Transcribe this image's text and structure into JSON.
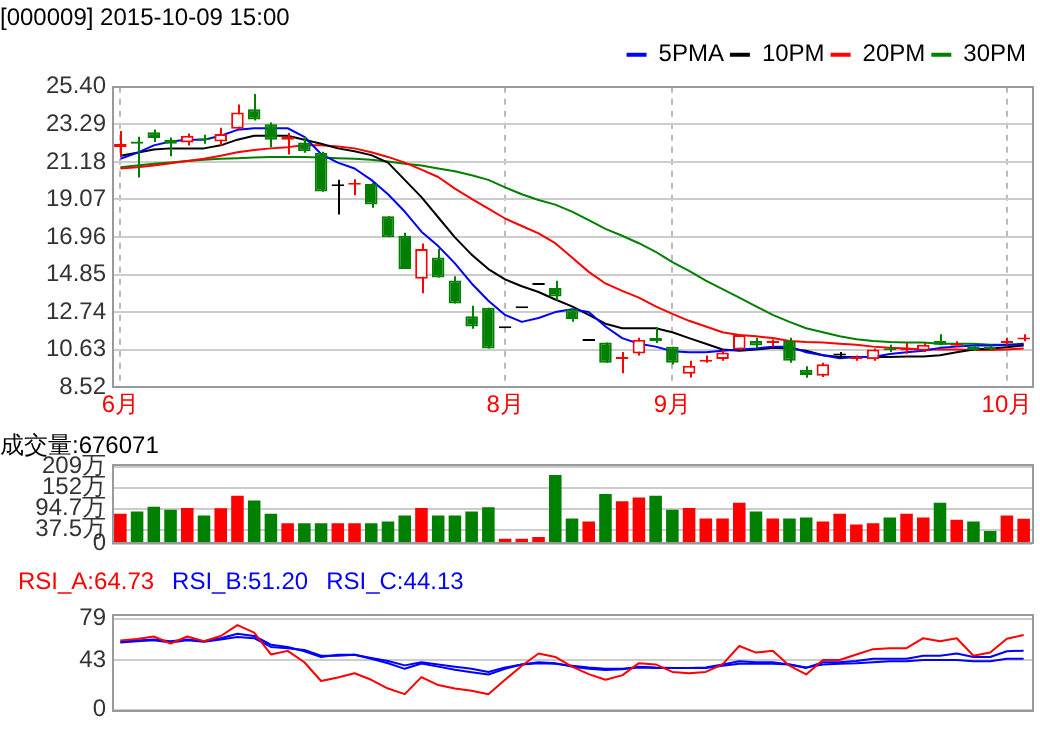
{
  "chart_data": [
    {
      "type": "candlestick",
      "title": "[000009] 2015-10-09 15:00",
      "categories": [
        "6月",
        null,
        null,
        null,
        null,
        null,
        null,
        null,
        null,
        null,
        null,
        null,
        null,
        null,
        null,
        null,
        null,
        null,
        null,
        null,
        null,
        null,
        null,
        "8月",
        null,
        null,
        null,
        null,
        null,
        null,
        null,
        null,
        null,
        "9月",
        null,
        null,
        null,
        null,
        null,
        null,
        null,
        null,
        null,
        null,
        null,
        null,
        null,
        null,
        null,
        null,
        null,
        null,
        null,
        "10月",
        null
      ],
      "ohlc": [
        [
          22.01,
          22.91,
          21.46,
          22.2
        ],
        [
          22.33,
          22.6,
          20.3,
          22.2
        ],
        [
          22.85,
          23.0,
          22.3,
          22.53
        ],
        [
          22.43,
          22.55,
          21.5,
          22.2
        ],
        [
          22.27,
          22.78,
          22.1,
          22.65
        ],
        [
          22.5,
          22.7,
          22.2,
          22.4
        ],
        [
          22.33,
          23.1,
          22.1,
          22.75
        ],
        [
          23.04,
          24.4,
          23.0,
          23.95
        ],
        [
          24.14,
          25.0,
          23.5,
          23.56
        ],
        [
          23.3,
          23.4,
          22.0,
          22.43
        ],
        [
          22.43,
          22.8,
          21.6,
          22.6
        ],
        [
          22.27,
          22.6,
          21.7,
          21.78
        ],
        [
          21.69,
          21.75,
          19.5,
          19.52
        ],
        [
          19.81,
          20.17,
          18.23,
          19.81
        ],
        [
          19.9,
          20.2,
          19.3,
          20.0
        ],
        [
          19.94,
          20.0,
          18.6,
          18.78
        ],
        [
          18.13,
          18.13,
          16.94,
          16.94
        ],
        [
          17.03,
          17.2,
          15.16,
          15.16
        ],
        [
          14.61,
          16.6,
          13.8,
          16.29
        ],
        [
          15.81,
          16.3,
          14.68,
          14.68
        ],
        [
          14.51,
          14.75,
          13.22,
          13.22
        ],
        [
          12.51,
          13.1,
          11.8,
          11.93
        ],
        [
          12.99,
          12.99,
          10.7,
          10.7
        ],
        [
          11.83,
          11.83,
          11.83,
          11.83
        ],
        [
          12.96,
          12.96,
          12.96,
          12.96
        ],
        [
          14.26,
          14.26,
          14.26,
          14.26
        ],
        [
          14.1,
          14.5,
          13.4,
          13.61
        ],
        [
          12.9,
          12.9,
          12.2,
          12.35
        ],
        [
          11.12,
          11.12,
          11.12,
          11.12
        ],
        [
          11.03,
          11.03,
          9.9,
          9.9
        ],
        [
          10.1,
          10.5,
          9.3,
          10.15
        ],
        [
          10.41,
          11.3,
          10.3,
          11.19
        ],
        [
          11.3,
          11.9,
          11.0,
          11.12
        ],
        [
          10.8,
          10.8,
          9.8,
          9.9
        ],
        [
          9.27,
          10.0,
          9.07,
          9.72
        ],
        [
          9.95,
          10.3,
          9.9,
          10.0
        ],
        [
          10.1,
          10.6,
          10.0,
          10.47
        ],
        [
          10.64,
          11.5,
          10.6,
          11.45
        ],
        [
          11.12,
          11.3,
          10.7,
          10.86
        ],
        [
          11.0,
          11.2,
          10.8,
          11.03
        ],
        [
          11.12,
          11.3,
          9.9,
          10.0
        ],
        [
          9.5,
          9.7,
          9.05,
          9.2
        ],
        [
          9.17,
          9.9,
          9.1,
          9.81
        ],
        [
          10.3,
          10.5,
          10.1,
          10.3
        ],
        [
          10.1,
          10.3,
          10.0,
          10.15
        ],
        [
          10.09,
          10.7,
          10.0,
          10.64
        ],
        [
          10.7,
          10.9,
          10.5,
          10.6
        ],
        [
          10.6,
          11.0,
          10.4,
          10.64
        ],
        [
          10.57,
          11.0,
          10.5,
          10.9
        ],
        [
          11.12,
          11.5,
          10.9,
          10.9
        ],
        [
          10.85,
          11.1,
          10.8,
          10.9
        ],
        [
          10.8,
          10.85,
          10.55,
          10.6
        ],
        [
          10.8,
          10.85,
          10.6,
          10.65
        ],
        [
          11.0,
          11.3,
          10.9,
          11.03
        ],
        [
          11.2,
          11.5,
          11.1,
          11.28
        ]
      ],
      "colors": [
        "#ff0000",
        "#008000",
        "#008000",
        "#008000",
        "#ff0000",
        "#008000",
        "#ff0000",
        "#ff0000",
        "#008000",
        "#008000",
        "#ff0000",
        "#008000",
        "#008000",
        "#000000",
        "#ff0000",
        "#008000",
        "#008000",
        "#008000",
        "#ff0000",
        "#008000",
        "#008000",
        "#008000",
        "#008000",
        "#000000",
        "#000000",
        "#000000",
        "#008000",
        "#008000",
        "#000000",
        "#008000",
        "#ff0000",
        "#ff0000",
        "#008000",
        "#008000",
        "#ff0000",
        "#ff0000",
        "#ff0000",
        "#ff0000",
        "#008000",
        "#ff0000",
        "#008000",
        "#008000",
        "#ff0000",
        "#000000",
        "#ff0000",
        "#ff0000",
        "#008000",
        "#ff0000",
        "#ff0000",
        "#008000",
        "#ff0000",
        "#008000",
        "#008000",
        "#ff0000",
        "#ff0000"
      ],
      "series": [
        {
          "name": "5PMA",
          "type": "line",
          "color": "#0000ff",
          "values": [
            21.36,
            21.69,
            22.11,
            22.33,
            22.43,
            22.43,
            22.65,
            22.98,
            23.07,
            23.07,
            23.07,
            22.59,
            21.62,
            21.14,
            20.81,
            20.17,
            19.36,
            18.39,
            17.26,
            16.45,
            15.48,
            14.35,
            13.38,
            12.58,
            12.19,
            12.41,
            12.74,
            12.9,
            12.74,
            11.93,
            11.28,
            10.96,
            10.8,
            10.54,
            10.48,
            10.48,
            10.57,
            10.64,
            10.7,
            10.8,
            10.8,
            10.48,
            10.32,
            10.15,
            10.22,
            10.22,
            10.38,
            10.48,
            10.57,
            10.73,
            10.8,
            10.86,
            10.86,
            10.9,
            10.96
          ]
        },
        {
          "name": "10PM",
          "type": "line",
          "color": "#000000",
          "values": [
            21.52,
            21.69,
            21.88,
            21.94,
            21.94,
            21.94,
            22.11,
            22.43,
            22.65,
            22.65,
            22.65,
            22.43,
            22.2,
            21.94,
            21.78,
            21.56,
            21.14,
            20.17,
            19.2,
            18.07,
            16.94,
            15.97,
            15.16,
            14.58,
            14.19,
            13.87,
            13.45,
            13.06,
            12.58,
            12.09,
            11.83,
            11.83,
            11.83,
            11.61,
            11.28,
            10.96,
            10.64,
            10.57,
            10.64,
            10.73,
            10.7,
            10.57,
            10.32,
            10.22,
            10.22,
            10.22,
            10.22,
            10.25,
            10.25,
            10.32,
            10.48,
            10.64,
            10.7,
            10.77,
            10.86
          ]
        },
        {
          "name": "20PM",
          "type": "line",
          "color": "#ff0000",
          "values": [
            20.81,
            20.88,
            20.98,
            21.1,
            21.23,
            21.36,
            21.52,
            21.72,
            21.85,
            21.94,
            22.01,
            22.11,
            22.11,
            22.04,
            21.94,
            21.72,
            21.46,
            21.14,
            20.75,
            20.33,
            19.68,
            19.1,
            18.55,
            18.0,
            17.58,
            17.16,
            16.61,
            15.81,
            15.0,
            14.35,
            13.93,
            13.55,
            13.06,
            12.64,
            12.25,
            11.93,
            11.61,
            11.45,
            11.38,
            11.28,
            11.12,
            11.06,
            11.03,
            10.96,
            10.9,
            10.8,
            10.73,
            10.7,
            10.64,
            10.64,
            10.64,
            10.61,
            10.61,
            10.64,
            10.7
          ]
        },
        {
          "name": "30PM",
          "type": "line",
          "color": "#008000",
          "values": [
            20.88,
            20.98,
            21.07,
            21.14,
            21.23,
            21.3,
            21.36,
            21.39,
            21.43,
            21.46,
            21.46,
            21.46,
            21.43,
            21.39,
            21.36,
            21.3,
            21.2,
            21.07,
            20.98,
            20.81,
            20.65,
            20.43,
            20.17,
            19.75,
            19.36,
            19.04,
            18.78,
            18.39,
            17.91,
            17.42,
            17.03,
            16.61,
            16.13,
            15.55,
            15.06,
            14.51,
            14.03,
            13.55,
            13.06,
            12.58,
            12.19,
            11.83,
            11.61,
            11.38,
            11.22,
            11.12,
            11.06,
            11.03,
            11.03,
            10.96,
            10.96,
            10.96,
            10.9,
            10.9,
            10.9
          ]
        }
      ],
      "ylim": [
        8.52,
        25.4
      ],
      "yticks": [
        {
          "value": 25.4,
          "label": "25.40"
        },
        {
          "value": 23.29,
          "label": "23.29"
        },
        {
          "value": 21.18,
          "label": "21.18"
        },
        {
          "value": 19.07,
          "label": "19.07"
        },
        {
          "value": 16.96,
          "label": "16.96"
        },
        {
          "value": 14.85,
          "label": "14.85"
        },
        {
          "value": 12.74,
          "label": "12.74"
        },
        {
          "value": 10.63,
          "label": "10.63"
        },
        {
          "value": 8.52,
          "label": "8.52"
        }
      ],
      "grid": true,
      "legend": "top right"
    },
    {
      "type": "bar",
      "title": "成交量:676071",
      "categories": [
        null,
        null,
        null,
        null,
        null,
        null,
        null,
        null,
        null,
        null,
        null,
        null,
        null,
        null,
        null,
        null,
        null,
        null,
        null,
        null,
        null,
        null,
        null,
        null,
        null,
        null,
        null,
        null,
        null,
        null,
        null,
        null,
        null,
        null,
        null,
        null,
        null,
        null,
        null,
        null,
        null,
        null,
        null,
        null,
        null,
        null,
        null,
        null,
        null,
        null,
        null,
        null,
        null,
        null,
        null
      ],
      "values": [
        81,
        87,
        100,
        92,
        97,
        76,
        96,
        130,
        117,
        81,
        55,
        55,
        55,
        55,
        55,
        55,
        60,
        76,
        97,
        76,
        76,
        87,
        99,
        13,
        13,
        18,
        186,
        68,
        60,
        135,
        115,
        125,
        130,
        92,
        97,
        68,
        68,
        111,
        87,
        68,
        68,
        71,
        60,
        81,
        52,
        55,
        71,
        81,
        71,
        111,
        65,
        60,
        34,
        76,
        67.6
      ],
      "colors": [
        "#ff0000",
        "#008000",
        "#008000",
        "#008000",
        "#ff0000",
        "#008000",
        "#ff0000",
        "#ff0000",
        "#008000",
        "#008000",
        "#ff0000",
        "#008000",
        "#008000",
        "#ff0000",
        "#ff0000",
        "#008000",
        "#008000",
        "#008000",
        "#ff0000",
        "#008000",
        "#008000",
        "#008000",
        "#008000",
        "#ff0000",
        "#ff0000",
        "#ff0000",
        "#008000",
        "#008000",
        "#ff0000",
        "#008000",
        "#ff0000",
        "#ff0000",
        "#008000",
        "#008000",
        "#ff0000",
        "#ff0000",
        "#ff0000",
        "#ff0000",
        "#008000",
        "#ff0000",
        "#008000",
        "#008000",
        "#ff0000",
        "#ff0000",
        "#ff0000",
        "#ff0000",
        "#008000",
        "#ff0000",
        "#ff0000",
        "#008000",
        "#ff0000",
        "#008000",
        "#008000",
        "#ff0000",
        "#ff0000"
      ],
      "ylim": [
        0,
        214
      ],
      "yticks": [
        {
          "value": 209,
          "label": "209万"
        },
        {
          "value": 152,
          "label": "152万"
        },
        {
          "value": 94.7,
          "label": "94.7万"
        },
        {
          "value": 37.5,
          "label": "37.5万"
        },
        0
      ],
      "grid": "y",
      "tick_labels": "y"
    },
    {
      "type": "line",
      "categories": [
        null,
        null,
        null,
        null,
        null,
        null,
        null,
        null,
        null,
        null,
        null,
        null,
        null,
        null,
        null,
        null,
        null,
        null,
        null,
        null,
        null,
        null,
        null,
        null,
        null,
        null,
        null,
        null,
        null,
        null,
        null,
        null,
        null,
        null,
        null,
        null,
        null,
        null,
        null,
        null,
        null,
        null,
        null,
        null,
        null,
        null,
        null,
        null,
        null,
        null,
        null,
        null,
        null,
        null,
        null
      ],
      "series": [
        {
          "name": "RSI_A:64.73",
          "color": "#ff0000",
          "values": [
            60.1,
            61.2,
            63.5,
            57.4,
            63.5,
            59.3,
            63.9,
            73.4,
            66.9,
            47.9,
            51.0,
            41.1,
            24.8,
            27.8,
            31.6,
            25.9,
            18.3,
            13.4,
            28.2,
            21.3,
            18.3,
            16.4,
            13.4,
            25.9,
            38.1,
            48.7,
            45.7,
            37.3,
            30.8,
            25.9,
            29.7,
            40.3,
            39.2,
            32.7,
            31.6,
            32.7,
            39.2,
            55.2,
            49.5,
            51.0,
            38.1,
            30.5,
            43.0,
            43.0,
            47.9,
            52.5,
            53.3,
            53.3,
            62.0,
            59.3,
            62.0,
            46.8,
            49.5,
            61.6,
            64.73
          ]
        },
        {
          "name": "RSI_B:51.20",
          "color": "#0000ff",
          "values": [
            59.0,
            60.1,
            60.9,
            59.3,
            60.9,
            59.3,
            62.0,
            65.8,
            63.9,
            56.3,
            54.4,
            50.6,
            45.7,
            47.6,
            47.6,
            44.1,
            40.3,
            35.4,
            40.0,
            37.3,
            34.6,
            32.4,
            30.5,
            35.4,
            39.2,
            41.1,
            40.3,
            37.3,
            35.4,
            34.3,
            35.0,
            37.3,
            36.5,
            36.2,
            36.2,
            36.5,
            39.2,
            41.9,
            41.1,
            41.1,
            39.2,
            36.2,
            41.1,
            41.1,
            42.2,
            44.1,
            44.1,
            44.1,
            46.8,
            46.8,
            48.7,
            45.7,
            45.7,
            50.6,
            51.2
          ]
        },
        {
          "name": "RSI_C:44.13",
          "color": "#0000ff",
          "values": [
            58.2,
            59.3,
            60.1,
            58.2,
            60.1,
            59.0,
            60.9,
            63.1,
            62.0,
            54.4,
            53.3,
            51.7,
            46.8,
            46.8,
            47.6,
            44.9,
            42.2,
            38.4,
            41.1,
            39.2,
            37.3,
            35.4,
            32.7,
            36.5,
            39.2,
            40.3,
            39.9,
            38.1,
            36.5,
            35.4,
            35.4,
            36.5,
            36.2,
            36.2,
            36.2,
            36.2,
            38.1,
            39.9,
            39.9,
            39.9,
            39.2,
            36.5,
            39.2,
            39.9,
            40.3,
            41.1,
            41.9,
            41.9,
            43.0,
            43.0,
            43.0,
            41.9,
            41.9,
            44.1,
            44.13
          ]
        }
      ],
      "ylim": [
        0,
        83
      ],
      "yticks": [
        79,
        43,
        0
      ],
      "grid": "y",
      "legend": "top left",
      "tick_labels": "y"
    }
  ]
}
